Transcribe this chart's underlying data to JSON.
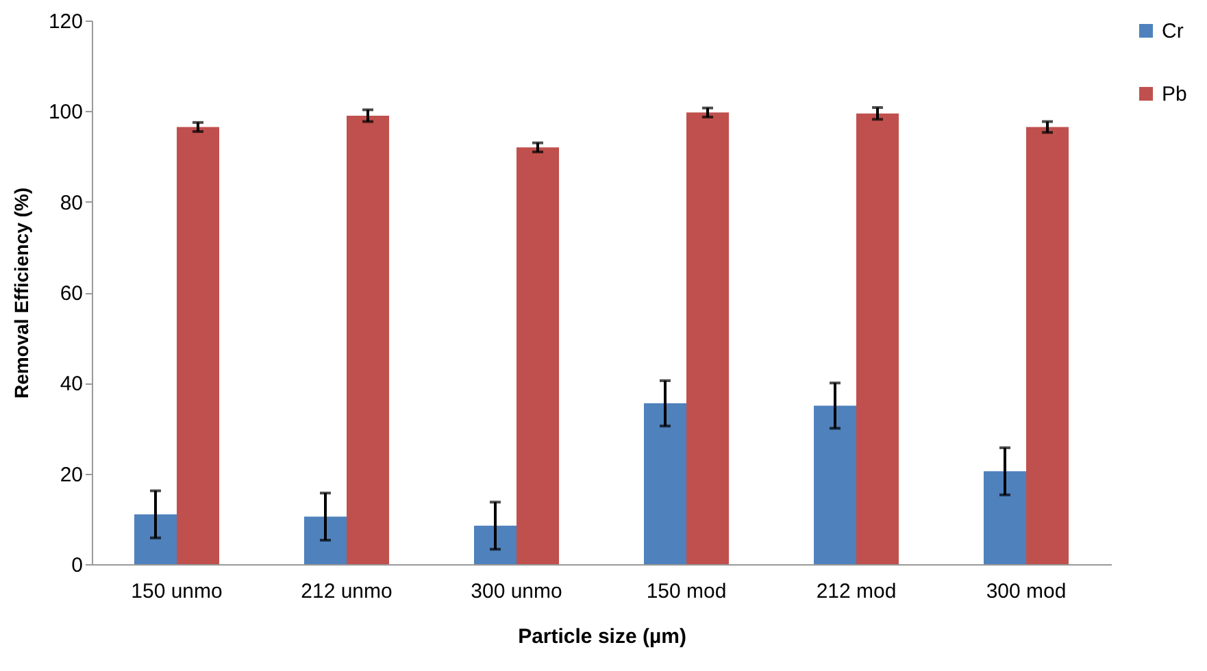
{
  "chart_data": {
    "type": "bar",
    "xlabel": "Particle size (µm)",
    "ylabel": "Removal Efficiency (%)",
    "categories": [
      "150 unmo",
      "212 unmo",
      "300 unmo",
      "150 mod",
      "212 mod",
      "300 mod"
    ],
    "series": [
      {
        "name": "Cr",
        "color": "#4f81bd",
        "values": [
          11,
          10.5,
          8.5,
          35.5,
          35,
          20.5
        ],
        "errors": [
          5.2,
          5.2,
          5.2,
          5,
          5,
          5.2
        ]
      },
      {
        "name": "Pb",
        "color": "#c0504d",
        "values": [
          96.5,
          99,
          92,
          99.7,
          99.5,
          96.5
        ],
        "errors": [
          1,
          1.3,
          1,
          1,
          1.3,
          1.2
        ]
      }
    ],
    "ylim": [
      0,
      120
    ],
    "yticks": [
      0,
      20,
      40,
      60,
      80,
      100,
      120
    ],
    "grid": false,
    "legend": "right"
  }
}
